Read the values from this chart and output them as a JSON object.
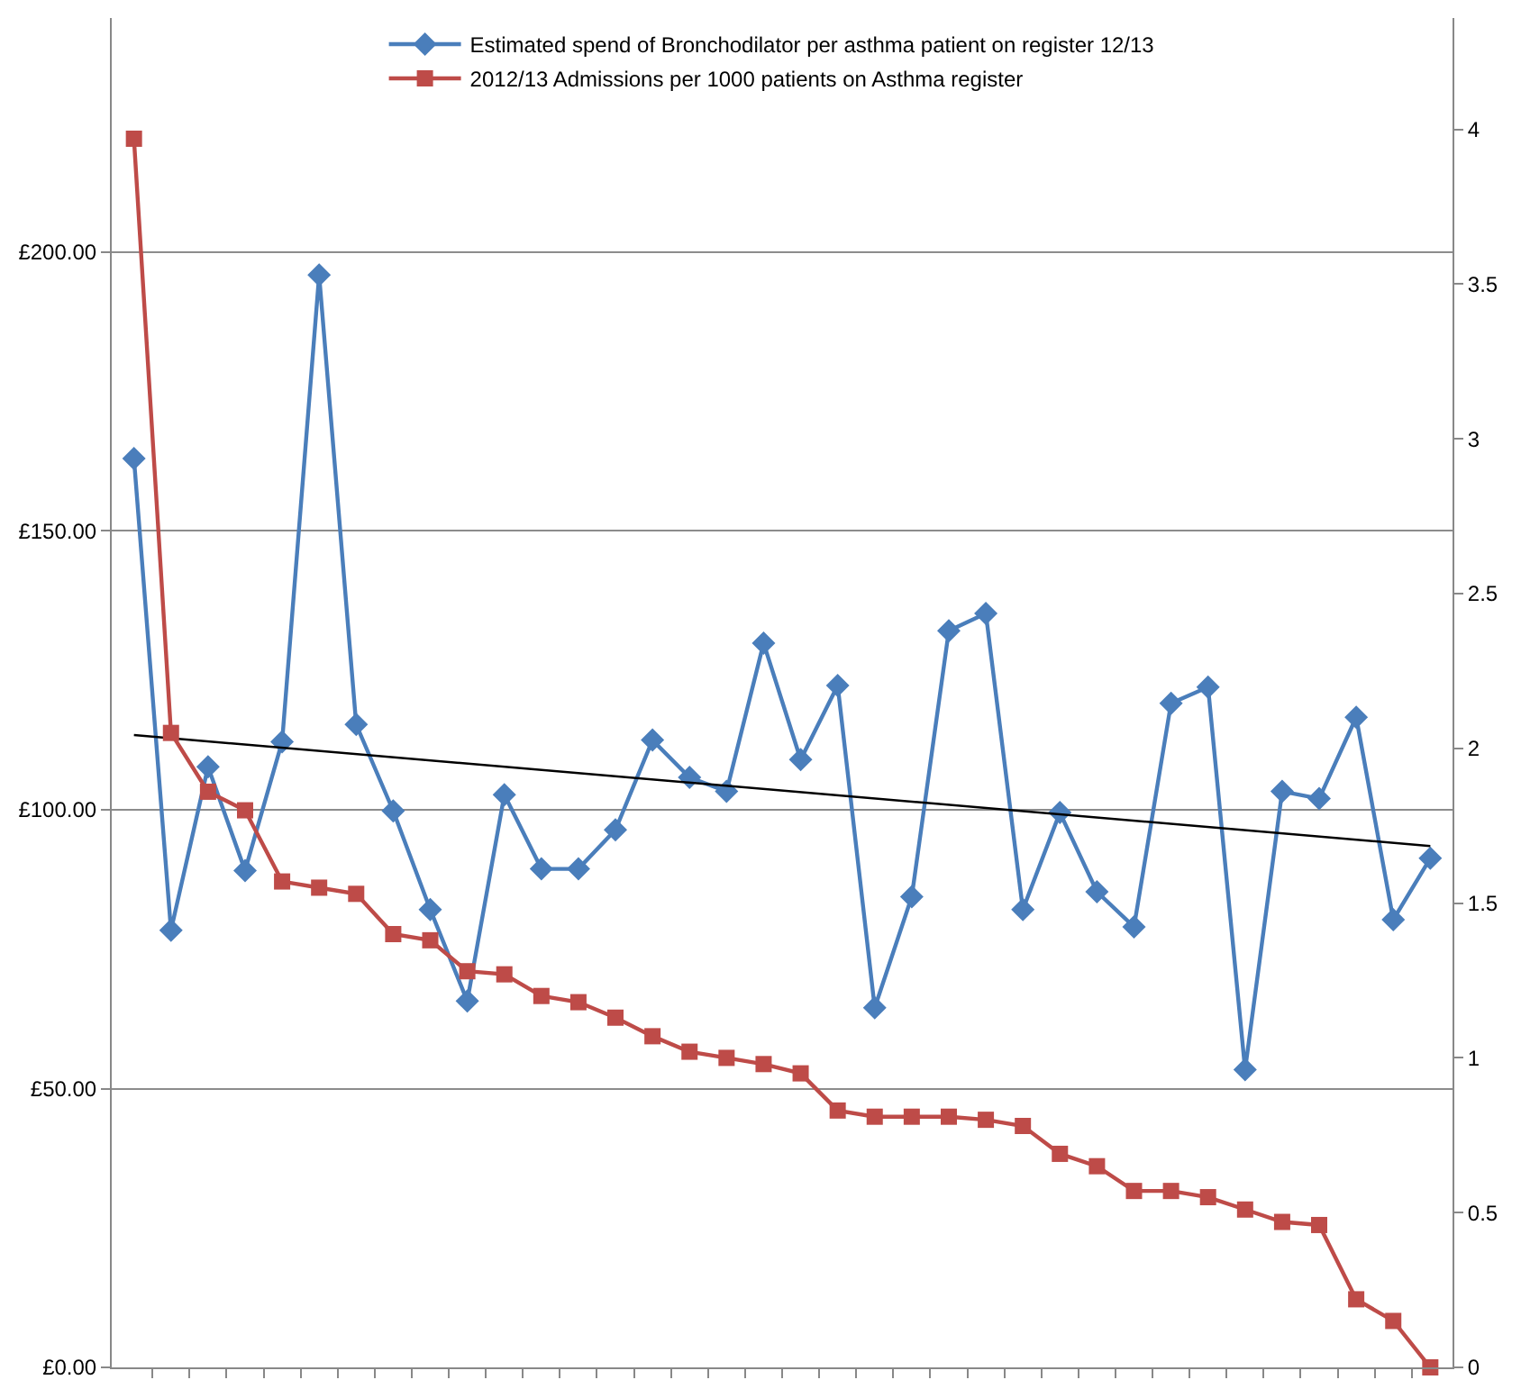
{
  "chart_data": {
    "type": "line",
    "categories": [
      null,
      null,
      null,
      null,
      null,
      null,
      null,
      null,
      null,
      null,
      null,
      null,
      null,
      null,
      null,
      null,
      null,
      null,
      null,
      null,
      null,
      null,
      null,
      null,
      null,
      null,
      null,
      null,
      null,
      null,
      null,
      null,
      null,
      null,
      null,
      null
    ],
    "series": [
      {
        "name": "Estimated spend of Bronchodilator per asthma patient on register 12/13",
        "color": "#4a7ebb",
        "marker": "diamond",
        "values": [
          163,
          78.4,
          107.7,
          89.1,
          112.2,
          195.9,
          115.3,
          99.8,
          82.1,
          65.7,
          102.7,
          89.4,
          89.4,
          96.4,
          112.5,
          105.8,
          103.3,
          129.9,
          109,
          122.3,
          64.5,
          84.4,
          132.1,
          135.2,
          82.1,
          99.5,
          85.3,
          79,
          119.1,
          122,
          53.4,
          103.3,
          102,
          116.6,
          80.3,
          91.3
        ]
      },
      {
        "name": "2012/13 Admissions per 1000 patients on Asthma register",
        "color": "#be4b48",
        "marker": "square",
        "axis": "y2",
        "values": [
          3.97,
          2.05,
          1.86,
          1.8,
          1.57,
          1.55,
          1.53,
          1.4,
          1.38,
          1.28,
          1.27,
          1.2,
          1.18,
          1.13,
          1.07,
          1.02,
          1.0,
          0.98,
          0.95,
          0.83,
          0.81,
          0.81,
          0.81,
          0.8,
          0.78,
          0.69,
          0.65,
          0.57,
          0.57,
          0.55,
          0.51,
          0.47,
          0.46,
          0.22,
          0.15,
          0.0
        ]
      },
      {
        "color": "#000000",
        "marker": "none",
        "values": [
          113.4,
          null,
          null,
          null,
          null,
          null,
          null,
          null,
          null,
          null,
          null,
          null,
          null,
          null,
          null,
          null,
          null,
          null,
          null,
          null,
          null,
          null,
          null,
          null,
          null,
          null,
          null,
          null,
          null,
          null,
          null,
          null,
          null,
          null,
          null,
          93.5
        ]
      }
    ],
    "ylim": [
      0,
      242
    ],
    "yticks": [
      {
        "value": 0,
        "label": "£0.00"
      },
      {
        "value": 50,
        "label": "£50.00"
      },
      {
        "value": 100,
        "label": "£100.00"
      },
      {
        "value": 150,
        "label": "£150.00"
      },
      {
        "value": 200,
        "label": "£200.00"
      }
    ],
    "y2lim": [
      0,
      4.36
    ],
    "y2ticks": [
      0,
      0.5,
      1,
      1.5,
      2,
      2.5,
      3,
      3.5,
      4
    ],
    "grid": "y",
    "legend": "top",
    "line_style": "solid"
  }
}
